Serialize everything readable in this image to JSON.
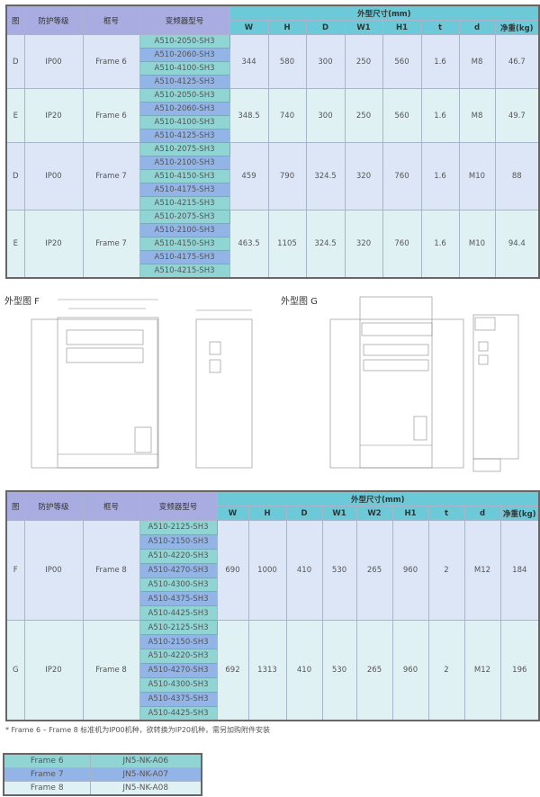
{
  "table1": {
    "headers": {
      "fig": "图",
      "protection": "防护等级",
      "frame": "框号",
      "model": "变频器型号",
      "dims_group": "外型尺寸(mm)",
      "dims": [
        "W",
        "H",
        "D",
        "W1",
        "H1",
        "t",
        "d",
        "净重(kg)"
      ]
    },
    "groups": [
      {
        "fig": "D",
        "protection": "IP00",
        "frame": "Frame 6",
        "models": [
          "A510-2050-SH3",
          "A510-2060-SH3",
          "A510-4100-SH3",
          "A510-4125-SH3"
        ],
        "values": [
          "344",
          "580",
          "300",
          "250",
          "560",
          "1.6",
          "M8",
          "46.7"
        ]
      },
      {
        "fig": "E",
        "protection": "IP20",
        "frame": "Frame 6",
        "models": [
          "A510-2050-SH3",
          "A510-2060-SH3",
          "A510-4100-SH3",
          "A510-4125-SH3"
        ],
        "values": [
          "348.5",
          "740",
          "300",
          "250",
          "560",
          "1.6",
          "M8",
          "49.7"
        ]
      },
      {
        "fig": "D",
        "protection": "IP00",
        "frame": "Frame 7",
        "models": [
          "A510-2075-SH3",
          "A510-2100-SH3",
          "A510-4150-SH3",
          "A510-4175-SH3",
          "A510-4215-SH3"
        ],
        "values": [
          "459",
          "790",
          "324.5",
          "320",
          "760",
          "1.6",
          "M10",
          "88"
        ]
      },
      {
        "fig": "E",
        "protection": "IP20",
        "frame": "Frame 7",
        "models": [
          "A510-2075-SH3",
          "A510-2100-SH3",
          "A510-4150-SH3",
          "A510-4175-SH3",
          "A510-4215-SH3"
        ],
        "values": [
          "463.5",
          "1105",
          "324.5",
          "320",
          "760",
          "1.6",
          "M10",
          "94.4"
        ]
      }
    ]
  },
  "drawings": {
    "f_label": "外型图 F",
    "g_label": "外型图 G"
  },
  "table2": {
    "headers": {
      "fig": "图",
      "protection": "防护等级",
      "frame": "框号",
      "model": "变频器型号",
      "dims_group": "外型尺寸(mm)",
      "dims": [
        "W",
        "H",
        "D",
        "W1",
        "W2",
        "H1",
        "t",
        "d",
        "净重(kg)"
      ]
    },
    "groups": [
      {
        "fig": "F",
        "protection": "IP00",
        "frame": "Frame 8",
        "models": [
          "A510-2125-SH3",
          "A510-2150-SH3",
          "A510-4220-SH3",
          "A510-4270-SH3",
          "A510-4300-SH3",
          "A510-4375-SH3",
          "A510-4425-SH3"
        ],
        "values": [
          "690",
          "1000",
          "410",
          "530",
          "265",
          "960",
          "2",
          "M12",
          "184"
        ]
      },
      {
        "fig": "G",
        "protection": "IP20",
        "frame": "Frame 8",
        "models": [
          "A510-2125-SH3",
          "A510-2150-SH3",
          "A510-4220-SH3",
          "A510-4270-SH3",
          "A510-4300-SH3",
          "A510-4375-SH3",
          "A510-4425-SH3"
        ],
        "values": [
          "692",
          "1313",
          "410",
          "530",
          "265",
          "960",
          "2",
          "M12",
          "196"
        ]
      }
    ]
  },
  "note": "* Frame 6 – Frame 8 标准机为IP00机种，欲转换为IP20机种，需另加购附件安装",
  "accessories": [
    {
      "frame": "Frame 6",
      "part": "JN5-NK-A06"
    },
    {
      "frame": "Frame 7",
      "part": "JN5-NK-A07"
    },
    {
      "frame": "Frame 8",
      "part": "JN5-NK-A08"
    }
  ],
  "colors": {
    "header_left": "#a9ace0",
    "header_dims": "#6ccad8",
    "model_a": "#90d4d4",
    "model_b": "#93b4e6",
    "body_a": "#dde6f6",
    "body_b": "#e0f1f4"
  }
}
